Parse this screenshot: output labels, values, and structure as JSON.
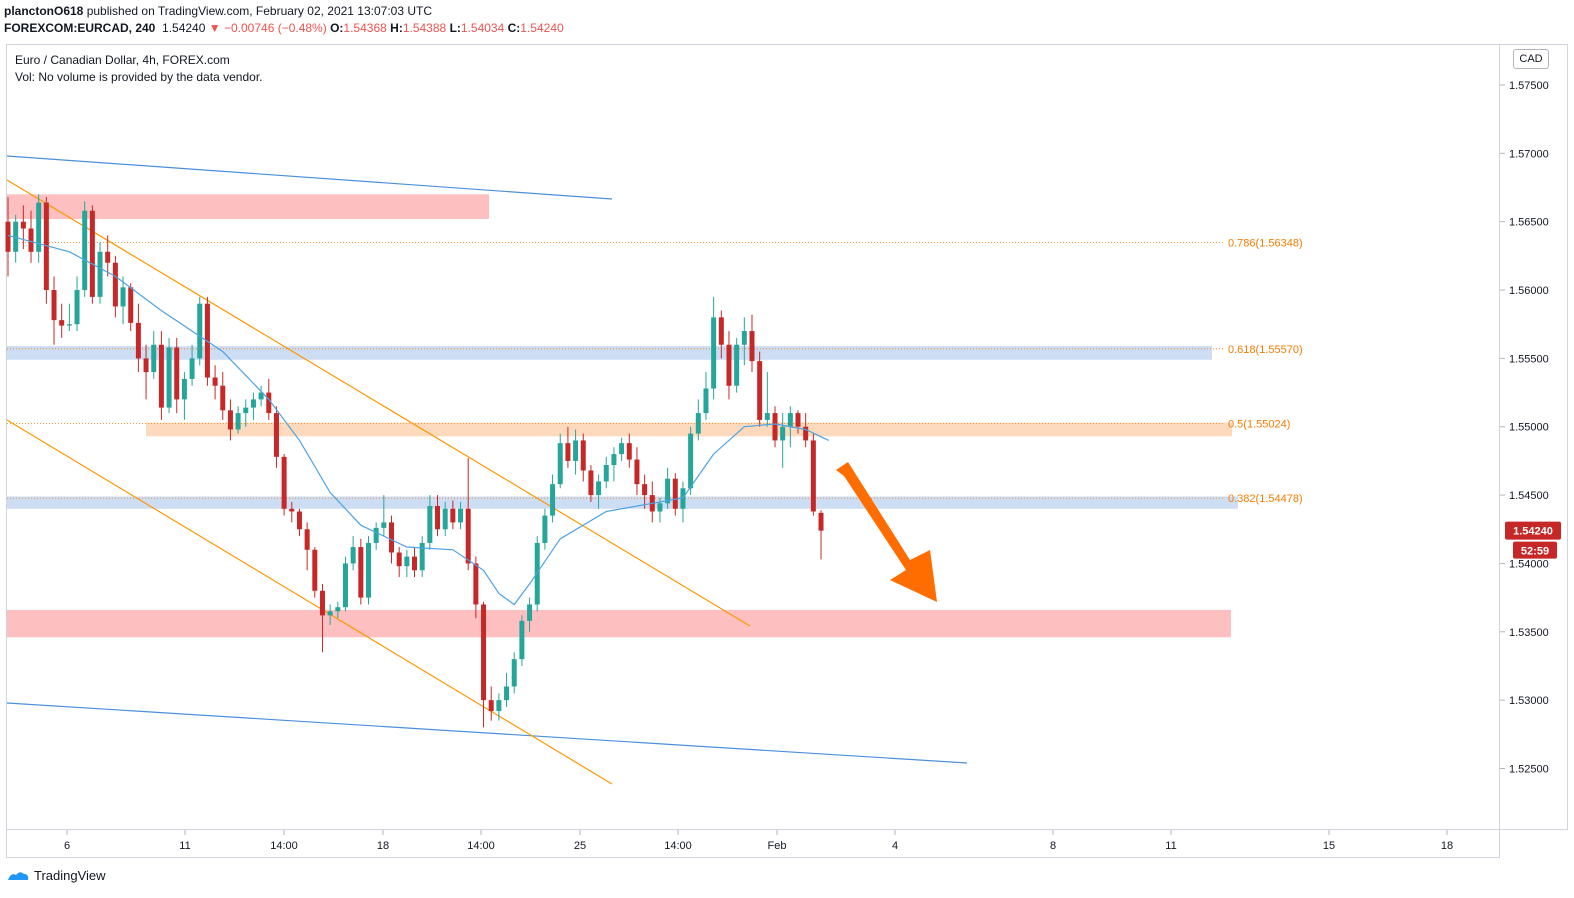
{
  "header": {
    "author": "planctonO618",
    "published": " published on TradingView.com, February 02, 2021 13:07:03 UTC",
    "symbol": "FOREXCOM:EURCAD, 240",
    "last": "1.54240",
    "change": "▼ −0.00746 (−0.48%)",
    "o_label": "O:",
    "o_value": "1.54368",
    "h_label": "H:",
    "h_value": "1.54388",
    "l_label": "L:",
    "l_value": "1.54034",
    "c_label": "C:",
    "c_value": "1.54240"
  },
  "legend": {
    "title": "Euro / Canadian Dollar, 4h, FOREX.com",
    "volume": "Vol: No volume is provided by the data vendor."
  },
  "currency": "CAD",
  "footer": {
    "brand": "TradingView"
  },
  "colors": {
    "up": "#26a69a",
    "down": "#c62828",
    "ma": "#4ba3e3",
    "channel_blue": "#4a90d9",
    "channel_orange": "#ff9800",
    "zone_red": "#fdb4b4",
    "zone_blue": "#c4d7f2",
    "zone_orange": "#fdd4b1",
    "arrow": "#ff6d00",
    "fib": "#f57c00",
    "price_tag": "#c62828"
  },
  "chart_data": {
    "type": "candlestick",
    "title": "Euro / Canadian Dollar, 4h, FOREX.com",
    "ylim": [
      1.5205,
      1.578
    ],
    "y_ticks": [
      "1.52500",
      "1.53000",
      "1.53500",
      "1.54000",
      "1.54500",
      "1.55000",
      "1.55500",
      "1.56000",
      "1.56500",
      "1.57000",
      "1.57500"
    ],
    "x_ticks": [
      "6",
      "11",
      "14:00",
      "18",
      "14:00",
      "25",
      "14:00",
      "Feb",
      "4",
      "8",
      "11",
      "15",
      "18"
    ],
    "last_price": "1.54240",
    "countdown": "52:59",
    "fib_levels": [
      {
        "label": "0.786(1.56348)",
        "value": 1.56348
      },
      {
        "label": "0.618(1.55570)",
        "value": 1.5557
      },
      {
        "label": "0.5(1.55024)",
        "value": 1.55024
      },
      {
        "label": "0.382(1.54478)",
        "value": 1.54478
      }
    ],
    "zones": [
      {
        "kind": "resistance",
        "top": 1.567,
        "bottom": 1.5652
      },
      {
        "kind": "fib-0.618",
        "top": 1.5559,
        "bottom": 1.5549
      },
      {
        "kind": "fib-0.5",
        "top": 1.5503,
        "bottom": 1.5493
      },
      {
        "kind": "fib-0.382",
        "top": 1.5449,
        "bottom": 1.544
      },
      {
        "kind": "support",
        "top": 1.5366,
        "bottom": 1.5346
      }
    ],
    "candles": [
      [
        1.565,
        1.5668,
        1.561,
        1.5628
      ],
      [
        1.5628,
        1.5655,
        1.562,
        1.565
      ],
      [
        1.565,
        1.5662,
        1.563,
        1.5645
      ],
      [
        1.5645,
        1.5658,
        1.562,
        1.5628
      ],
      [
        1.5628,
        1.567,
        1.562,
        1.5664
      ],
      [
        1.5664,
        1.5668,
        1.559,
        1.56
      ],
      [
        1.56,
        1.561,
        1.556,
        1.5578
      ],
      [
        1.5578,
        1.559,
        1.5565,
        1.5574
      ],
      [
        1.5574,
        1.559,
        1.557,
        1.5575
      ],
      [
        1.5575,
        1.561,
        1.557,
        1.56
      ],
      [
        1.56,
        1.5665,
        1.5595,
        1.5658
      ],
      [
        1.5658,
        1.5662,
        1.559,
        1.5595
      ],
      [
        1.5595,
        1.5635,
        1.559,
        1.5628
      ],
      [
        1.5628,
        1.564,
        1.561,
        1.562
      ],
      [
        1.562,
        1.5625,
        1.558,
        1.5588
      ],
      [
        1.5588,
        1.561,
        1.5575,
        1.5602
      ],
      [
        1.5602,
        1.5605,
        1.557,
        1.5576
      ],
      [
        1.5576,
        1.559,
        1.554,
        1.555
      ],
      [
        1.555,
        1.556,
        1.552,
        1.554
      ],
      [
        1.554,
        1.557,
        1.5535,
        1.556
      ],
      [
        1.556,
        1.557,
        1.5505,
        1.5514
      ],
      [
        1.5514,
        1.5565,
        1.551,
        1.5558
      ],
      [
        1.5558,
        1.5565,
        1.551,
        1.552
      ],
      [
        1.552,
        1.554,
        1.5505,
        1.5535
      ],
      [
        1.5535,
        1.556,
        1.553,
        1.555
      ],
      [
        1.555,
        1.5595,
        1.5545,
        1.559
      ],
      [
        1.559,
        1.5595,
        1.553,
        1.5536
      ],
      [
        1.5536,
        1.5545,
        1.552,
        1.553
      ],
      [
        1.553,
        1.554,
        1.5505,
        1.5512
      ],
      [
        1.5512,
        1.552,
        1.549,
        1.5498
      ],
      [
        1.5498,
        1.5515,
        1.5495,
        1.551
      ],
      [
        1.551,
        1.552,
        1.55,
        1.5514
      ],
      [
        1.5514,
        1.5525,
        1.5505,
        1.552
      ],
      [
        1.552,
        1.553,
        1.5515,
        1.5525
      ],
      [
        1.5525,
        1.5535,
        1.5505,
        1.551
      ],
      [
        1.551,
        1.5515,
        1.547,
        1.5478
      ],
      [
        1.5478,
        1.548,
        1.5435,
        1.544
      ],
      [
        1.544,
        1.5445,
        1.543,
        1.5438
      ],
      [
        1.5438,
        1.544,
        1.542,
        1.5425
      ],
      [
        1.5425,
        1.543,
        1.5395,
        1.541
      ],
      [
        1.541,
        1.5412,
        1.5375,
        1.538
      ],
      [
        1.538,
        1.5385,
        1.5335,
        1.5362
      ],
      [
        1.5362,
        1.537,
        1.5355,
        1.5365
      ],
      [
        1.5365,
        1.5372,
        1.536,
        1.5368
      ],
      [
        1.5368,
        1.5405,
        1.5365,
        1.54
      ],
      [
        1.54,
        1.542,
        1.5395,
        1.5412
      ],
      [
        1.5412,
        1.5418,
        1.537,
        1.5375
      ],
      [
        1.5375,
        1.542,
        1.537,
        1.5415
      ],
      [
        1.5415,
        1.543,
        1.541,
        1.5426
      ],
      [
        1.5426,
        1.545,
        1.542,
        1.543
      ],
      [
        1.543,
        1.5435,
        1.54,
        1.5408
      ],
      [
        1.5408,
        1.5412,
        1.539,
        1.5398
      ],
      [
        1.5398,
        1.541,
        1.539,
        1.5405
      ],
      [
        1.5405,
        1.5412,
        1.539,
        1.5395
      ],
      [
        1.5395,
        1.542,
        1.539,
        1.5415
      ],
      [
        1.5415,
        1.545,
        1.541,
        1.5442
      ],
      [
        1.5442,
        1.545,
        1.542,
        1.5425
      ],
      [
        1.5425,
        1.5445,
        1.542,
        1.544
      ],
      [
        1.544,
        1.5446,
        1.5425,
        1.543
      ],
      [
        1.543,
        1.5445,
        1.5425,
        1.544
      ],
      [
        1.544,
        1.5477,
        1.5395,
        1.54
      ],
      [
        1.54,
        1.5405,
        1.536,
        1.537
      ],
      [
        1.537,
        1.5372,
        1.528,
        1.53
      ],
      [
        1.53,
        1.531,
        1.5285,
        1.5292
      ],
      [
        1.5292,
        1.5305,
        1.5285,
        1.53
      ],
      [
        1.53,
        1.532,
        1.5295,
        1.531
      ],
      [
        1.531,
        1.5335,
        1.5305,
        1.533
      ],
      [
        1.533,
        1.5362,
        1.5325,
        1.5358
      ],
      [
        1.5358,
        1.5375,
        1.535,
        1.537
      ],
      [
        1.537,
        1.542,
        1.5365,
        1.5415
      ],
      [
        1.5415,
        1.544,
        1.541,
        1.5435
      ],
      [
        1.5435,
        1.5465,
        1.543,
        1.5458
      ],
      [
        1.5458,
        1.5495,
        1.5455,
        1.5488
      ],
      [
        1.5488,
        1.55,
        1.547,
        1.5475
      ],
      [
        1.5475,
        1.5498,
        1.5465,
        1.549
      ],
      [
        1.549,
        1.5495,
        1.546,
        1.5468
      ],
      [
        1.5468,
        1.5472,
        1.5445,
        1.545
      ],
      [
        1.545,
        1.5465,
        1.544,
        1.546
      ],
      [
        1.546,
        1.5478,
        1.5455,
        1.5472
      ],
      [
        1.5472,
        1.5485,
        1.546,
        1.548
      ],
      [
        1.548,
        1.5492,
        1.5475,
        1.5488
      ],
      [
        1.5488,
        1.5495,
        1.547,
        1.5476
      ],
      [
        1.5476,
        1.5485,
        1.545,
        1.5458
      ],
      [
        1.5458,
        1.5465,
        1.544,
        1.545
      ],
      [
        1.545,
        1.546,
        1.543,
        1.5438
      ],
      [
        1.5438,
        1.5448,
        1.543,
        1.5444
      ],
      [
        1.5444,
        1.547,
        1.544,
        1.5462
      ],
      [
        1.5462,
        1.5466,
        1.5435,
        1.544
      ],
      [
        1.544,
        1.546,
        1.543,
        1.5455
      ],
      [
        1.5455,
        1.55,
        1.545,
        1.5495
      ],
      [
        1.5495,
        1.552,
        1.549,
        1.551
      ],
      [
        1.551,
        1.554,
        1.5505,
        1.5528
      ],
      [
        1.5528,
        1.5595,
        1.552,
        1.558
      ],
      [
        1.558,
        1.5585,
        1.555,
        1.556
      ],
      [
        1.556,
        1.557,
        1.552,
        1.553
      ],
      [
        1.553,
        1.5565,
        1.5525,
        1.556
      ],
      [
        1.556,
        1.558,
        1.5545,
        1.557
      ],
      [
        1.557,
        1.5582,
        1.554,
        1.5548
      ],
      [
        1.5548,
        1.5555,
        1.55,
        1.5505
      ],
      [
        1.5505,
        1.554,
        1.55,
        1.551
      ],
      [
        1.551,
        1.5515,
        1.5485,
        1.549
      ],
      [
        1.549,
        1.551,
        1.547,
        1.55
      ],
      [
        1.55,
        1.5515,
        1.5485,
        1.551
      ],
      [
        1.551,
        1.5512,
        1.5495,
        1.55
      ],
      [
        1.55,
        1.551,
        1.5485,
        1.549
      ],
      [
        1.549,
        1.5495,
        1.5435,
        1.5438
      ],
      [
        1.5437,
        1.5439,
        1.5403,
        1.5424
      ]
    ],
    "ma": [
      [
        0,
        1.564
      ],
      [
        8,
        1.5628
      ],
      [
        14,
        1.561
      ],
      [
        20,
        1.5585
      ],
      [
        28,
        1.5555
      ],
      [
        34,
        1.552
      ],
      [
        38,
        1.549
      ],
      [
        42,
        1.5452
      ],
      [
        46,
        1.5428
      ],
      [
        52,
        1.5412
      ],
      [
        58,
        1.541
      ],
      [
        62,
        1.5395
      ],
      [
        64,
        1.5378
      ],
      [
        66,
        1.537
      ],
      [
        68,
        1.5385
      ],
      [
        72,
        1.5418
      ],
      [
        78,
        1.5438
      ],
      [
        84,
        1.5444
      ],
      [
        88,
        1.5448
      ],
      [
        92,
        1.548
      ],
      [
        96,
        1.55
      ],
      [
        100,
        1.5502
      ],
      [
        104,
        1.5498
      ],
      [
        107,
        1.549
      ]
    ]
  }
}
